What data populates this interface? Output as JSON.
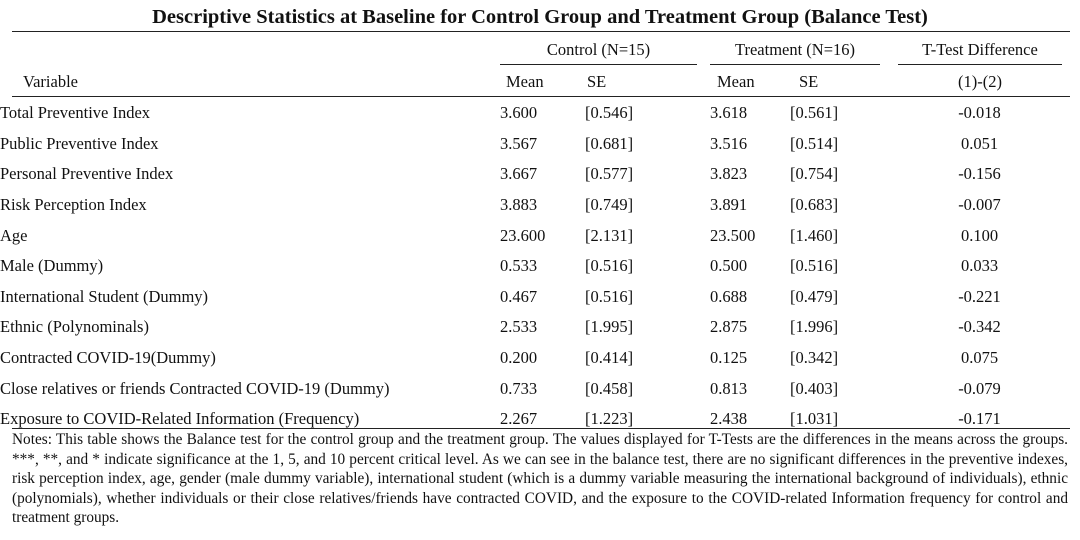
{
  "title": "Descriptive Statistics at Baseline for Control Group and Treatment Group (Balance Test)",
  "header": {
    "control_group": "Control (N=15)",
    "treatment_group": "Treatment (N=16)",
    "ttest_group": "T-Test Difference",
    "variable": "Variable",
    "control_mean": "Mean",
    "control_se": "SE",
    "treatment_mean": "Mean",
    "treatment_se": "SE",
    "ttest_sub": "(1)-(2)"
  },
  "rows": [
    {
      "variable": "Total Preventive Index",
      "control_mean": "3.600",
      "control_se": "[0.546]",
      "treatment_mean": "3.618",
      "treatment_se": "[0.561]",
      "diff": "-0.018"
    },
    {
      "variable": "Public Preventive Index",
      "control_mean": "3.567",
      "control_se": "[0.681]",
      "treatment_mean": "3.516",
      "treatment_se": "[0.514]",
      "diff": "0.051"
    },
    {
      "variable": "Personal Preventive Index",
      "control_mean": "3.667",
      "control_se": "[0.577]",
      "treatment_mean": "3.823",
      "treatment_se": "[0.754]",
      "diff": "-0.156"
    },
    {
      "variable": "Risk Perception Index",
      "control_mean": "3.883",
      "control_se": "[0.749]",
      "treatment_mean": "3.891",
      "treatment_se": "[0.683]",
      "diff": "-0.007"
    },
    {
      "variable": "Age",
      "control_mean": "23.600",
      "control_se": "[2.131]",
      "treatment_mean": "23.500",
      "treatment_se": "[1.460]",
      "diff": "0.100"
    },
    {
      "variable": "Male (Dummy)",
      "control_mean": "0.533",
      "control_se": "[0.516]",
      "treatment_mean": "0.500",
      "treatment_se": "[0.516]",
      "diff": "0.033"
    },
    {
      "variable": "International Student (Dummy)",
      "control_mean": "0.467",
      "control_se": "[0.516]",
      "treatment_mean": "0.688",
      "treatment_se": "[0.479]",
      "diff": "-0.221"
    },
    {
      "variable": "Ethnic (Polynominals)",
      "control_mean": "2.533",
      "control_se": "[1.995]",
      "treatment_mean": "2.875",
      "treatment_se": "[1.996]",
      "diff": "-0.342"
    },
    {
      "variable": "Contracted COVID-19(Dummy)",
      "control_mean": "0.200",
      "control_se": "[0.414]",
      "treatment_mean": "0.125",
      "treatment_se": "[0.342]",
      "diff": "0.075"
    },
    {
      "variable": "Close relatives or friends Contracted COVID-19 (Dummy)",
      "control_mean": "0.733",
      "control_se": "[0.458]",
      "treatment_mean": "0.813",
      "treatment_se": "[0.403]",
      "diff": "-0.079"
    },
    {
      "variable": "Exposure to COVID-Related Information (Frequency)",
      "control_mean": "2.267",
      "control_se": "[1.223]",
      "treatment_mean": "2.438",
      "treatment_se": "[1.031]",
      "diff": "-0.171"
    }
  ],
  "notes": "Notes: This table shows the Balance test for the control group and the treatment group. The values displayed for T-Tests are the differences in the means across the groups. ***, **, and * indicate significance at the 1, 5, and 10 percent critical level. As we can see in the balance test, there are no significant differences in the preventive indexes, risk perception index, age, gender (male dummy variable), international student (which is a dummy variable measuring the international background of individuals), ethnic (polynomials),  whether individuals or their close relatives/friends have contracted COVID, and the exposure to the COVID-related Information frequency for control and treatment groups."
}
